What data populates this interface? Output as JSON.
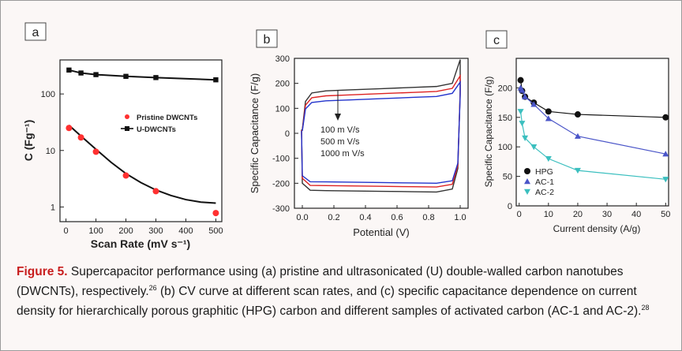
{
  "figure": {
    "label": "Figure 5.",
    "caption_text": "Supercapacitor performance using (a) pristine and ultrasonicated (U) double-walled carbon nanotubes (DWCNTs), respectively.",
    "ref_a": "26",
    "caption_text_2": " (b) CV curve at different scan rates, and (c) specific capacitance dependence on current density for hierarchically porous graphitic (HPG) carbon and different samples of activated carbon (AC-1 and AC-2).",
    "ref_b": "28"
  },
  "chart_data": [
    {
      "panel": "a",
      "type": "scatter",
      "xlabel": "Scan Rate (mV s⁻¹)",
      "ylabel": "C (Fg⁻¹)",
      "xlim": [
        -20,
        520
      ],
      "ylim": [
        0.55,
        400
      ],
      "yscale": "log",
      "xticks": [
        0,
        100,
        200,
        300,
        400,
        500
      ],
      "yticks": [
        1,
        10,
        100
      ],
      "series": [
        {
          "name": "Pristine DWCNTs",
          "color": "#ff3030",
          "marker": "circle",
          "line": false,
          "x": [
            10,
            50,
            100,
            200,
            300,
            500
          ],
          "y": [
            25,
            17,
            9.5,
            3.6,
            1.9,
            0.78
          ]
        },
        {
          "name": "U-DWCNTs",
          "color": "#111111",
          "marker": "square",
          "line": true,
          "x": [
            10,
            50,
            100,
            200,
            300,
            500
          ],
          "y": [
            265,
            235,
            220,
            205,
            195,
            178
          ]
        }
      ],
      "fit_curve": {
        "x": [
          10,
          50,
          100,
          150,
          200,
          250,
          300,
          350,
          400,
          450,
          500
        ],
        "y": [
          28,
          18,
          10.5,
          6.2,
          3.9,
          2.7,
          2.0,
          1.6,
          1.35,
          1.22,
          1.17
        ]
      },
      "legend_position": "right"
    },
    {
      "panel": "b",
      "type": "line",
      "xlabel": "Potential (V)",
      "ylabel": "Specific Capacitance (F/g)",
      "xlim": [
        -0.05,
        1.05
      ],
      "ylim": [
        -300,
        300
      ],
      "xticks": [
        0.0,
        0.2,
        0.4,
        0.6,
        0.8,
        1.0
      ],
      "yticks": [
        -300,
        -200,
        -100,
        0,
        100,
        200,
        300
      ],
      "annotations": [
        "100 m V/s",
        "500 m V/s",
        "1000 m V/s"
      ],
      "series": [
        {
          "name": "100 m V/s",
          "color": "#333333",
          "upper": 170,
          "lower": -235,
          "end_high": 295,
          "end_low": 170,
          "start_high": 150,
          "start_low": -200
        },
        {
          "name": "500 m V/s",
          "color": "#dd2222",
          "upper": 150,
          "lower": -215,
          "end_high": 230,
          "end_low": 160,
          "start_high": 120,
          "start_low": -180
        },
        {
          "name": "1000 m V/s",
          "color": "#2233cc",
          "upper": 130,
          "lower": -200,
          "end_high": 205,
          "end_low": 150,
          "start_high": 95,
          "start_low": -170
        }
      ]
    },
    {
      "panel": "c",
      "type": "line",
      "xlabel": "Current density (A/g)",
      "ylabel": "Specific Capacitance (F/g)",
      "xlim": [
        -1,
        51
      ],
      "ylim": [
        0,
        250
      ],
      "xticks": [
        0,
        10,
        20,
        30,
        40,
        50
      ],
      "yticks": [
        0,
        50,
        100,
        150,
        200
      ],
      "legend_position": "bottom-left",
      "x": [
        0.5,
        1,
        2,
        5,
        10,
        20,
        50
      ],
      "series": [
        {
          "name": "HPG",
          "color": "#111111",
          "marker": "circle",
          "values": [
            213,
            195,
            185,
            175,
            160,
            155,
            150
          ]
        },
        {
          "name": "AC-1",
          "color": "#4a55c8",
          "marker": "triangle-up",
          "values": [
            200,
            196,
            185,
            172,
            148,
            118,
            88
          ]
        },
        {
          "name": "AC-2",
          "color": "#3bbfbf",
          "marker": "triangle-down",
          "values": [
            160,
            140,
            115,
            100,
            80,
            60,
            45
          ]
        }
      ]
    }
  ]
}
